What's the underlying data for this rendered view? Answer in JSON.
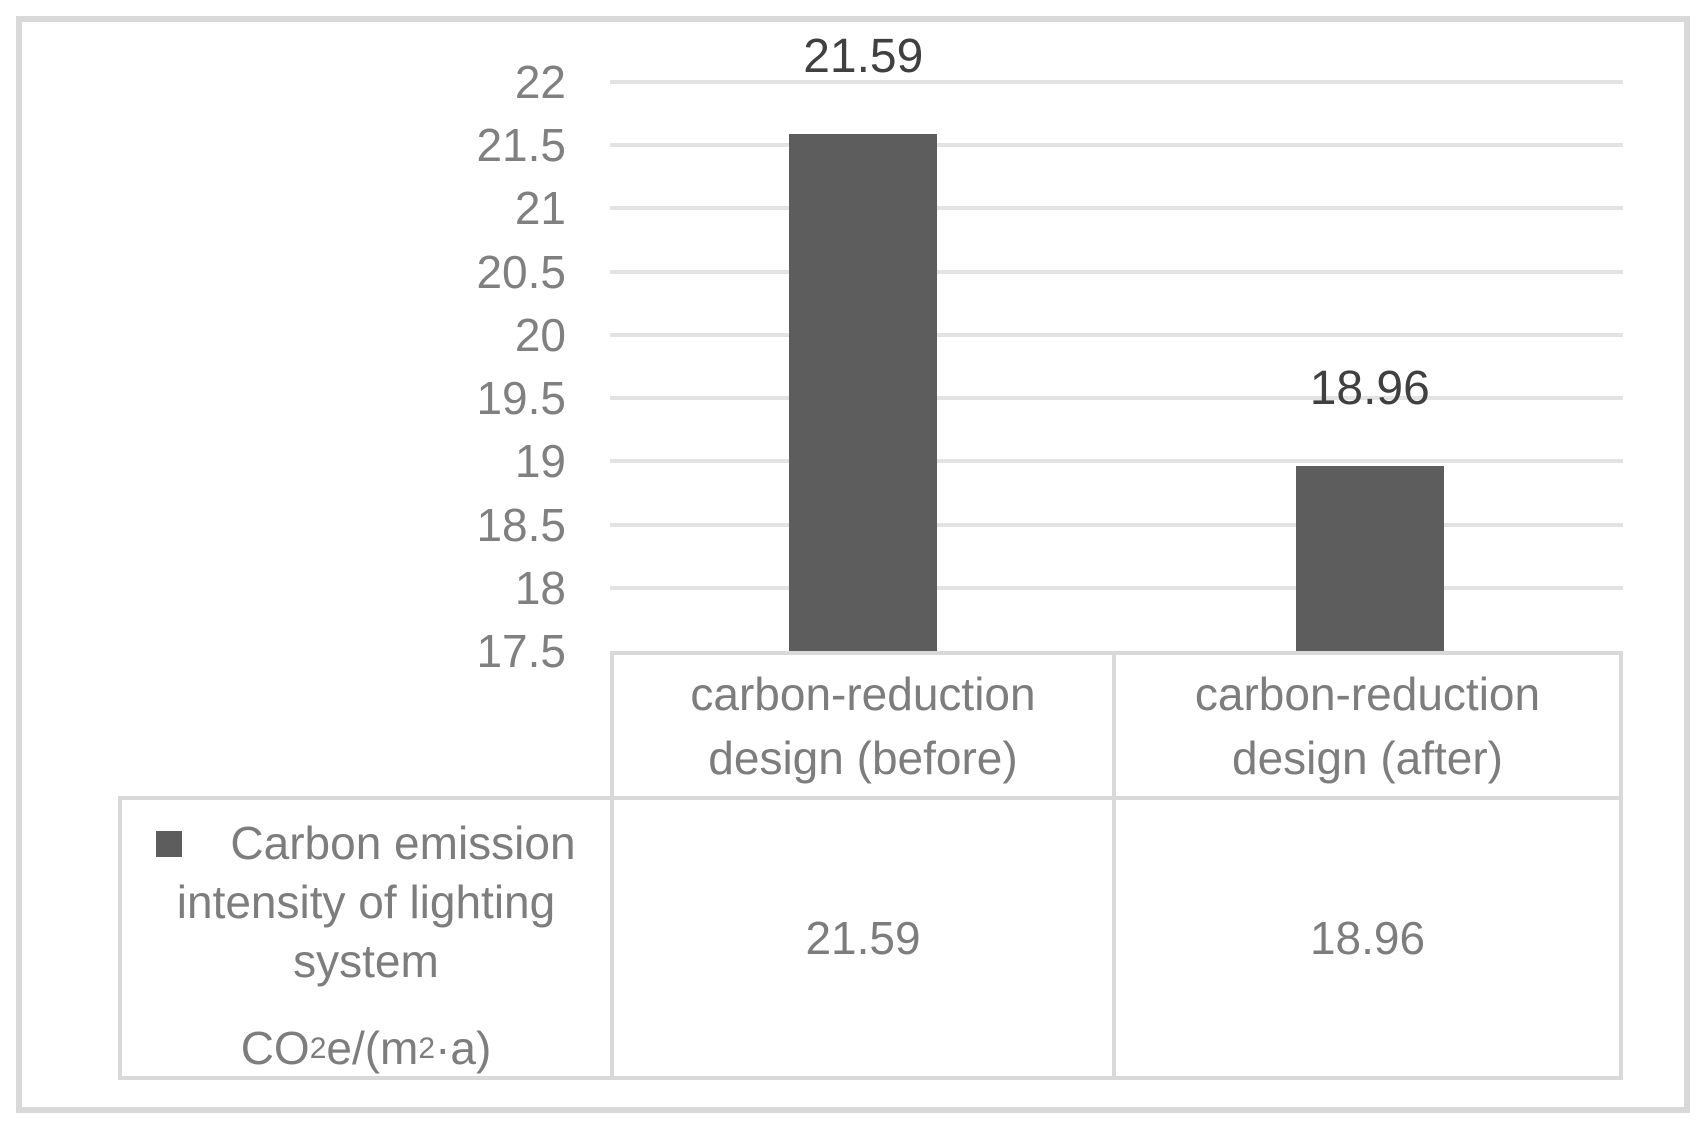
{
  "chart_data": {
    "type": "bar",
    "title": "",
    "categories": [
      "carbon-reduction design (before)",
      "carbon-reduction design (after)"
    ],
    "series": [
      {
        "name": "Carbon emission intensity of lighting system CO₂e/(m²·a)",
        "values": [
          21.59,
          18.96
        ],
        "color": "#5d5d5d"
      }
    ],
    "value_labels": [
      "21.59",
      "18.96"
    ],
    "y_axis": {
      "min": 17.5,
      "max": 22,
      "step": 0.5,
      "ticks": [
        "22",
        "21.5",
        "21",
        "20.5",
        "20",
        "19.5",
        "19",
        "18.5",
        "18",
        "17.5"
      ]
    },
    "grid": true,
    "legend_position": "data-table-left",
    "xlabel": "",
    "ylabel": "CO₂e/(m²·a)"
  },
  "table": {
    "header": [
      {
        "line1": "carbon-reduction",
        "line2": "design (before)"
      },
      {
        "line1": "carbon-reduction",
        "line2": "design (after)"
      }
    ],
    "values": [
      "21.59",
      "18.96"
    ]
  },
  "legend": {
    "line1": "Carbon emission",
    "line2": "intensity of lighting",
    "line3": "system",
    "unit_prefix": "CO",
    "unit_sub": "2",
    "unit_mid": "e/(m",
    "unit_sup": "2",
    "unit_suffix": "·a)"
  },
  "colors": {
    "bar": "#5d5d5d",
    "grid": "#e3e3e3",
    "border": "#d9d9d9",
    "tick_text": "#808080",
    "table_text": "#7d7d7d",
    "data_label_text": "#404040"
  }
}
